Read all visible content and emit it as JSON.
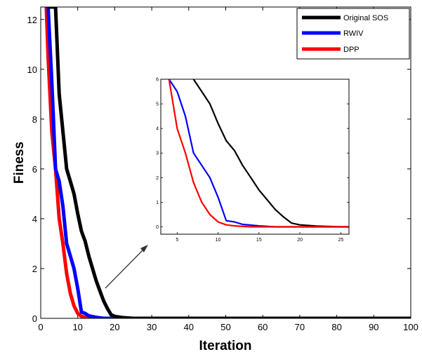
{
  "chart_data": {
    "type": "line",
    "title": "",
    "xlabel": "Iteration",
    "ylabel": "Finess",
    "xlim": [
      0,
      100
    ],
    "ylim": [
      0,
      12.5
    ],
    "xticks": [
      0,
      10,
      20,
      30,
      40,
      50,
      60,
      70,
      80,
      90,
      100
    ],
    "yticks": [
      0,
      2,
      4,
      6,
      8,
      10,
      12
    ],
    "grid": false,
    "legend": "top-right",
    "series": [
      {
        "name": "Original SOS",
        "color": "#000000",
        "x": [
          2,
          3,
          4,
          5,
          6,
          7,
          8,
          9,
          10,
          11,
          12,
          13,
          14,
          15,
          16,
          17,
          18,
          19,
          20,
          22,
          25,
          100
        ],
        "y": [
          12.5,
          12.5,
          12.5,
          9.0,
          7.5,
          6.0,
          5.5,
          5.0,
          4.2,
          3.5,
          3.1,
          2.5,
          2.0,
          1.5,
          1.1,
          0.7,
          0.4,
          0.15,
          0.08,
          0.03,
          0.0,
          0.0
        ]
      },
      {
        "name": "RWIV",
        "color": "#0000ff",
        "x": [
          2,
          3,
          4,
          5,
          6,
          7,
          8,
          9,
          10,
          11,
          12,
          13,
          15,
          17,
          60
        ],
        "y": [
          12.5,
          9.5,
          6.0,
          5.5,
          4.5,
          3.0,
          2.5,
          2.0,
          1.2,
          0.25,
          0.2,
          0.1,
          0.04,
          0.0,
          0.0
        ]
      },
      {
        "name": "DPP",
        "color": "#ff0000",
        "x": [
          1.5,
          2,
          3,
          4,
          5,
          6,
          7,
          8,
          9,
          10,
          11,
          12,
          14,
          16,
          57
        ],
        "y": [
          12.5,
          10.5,
          7.5,
          6.0,
          4.0,
          3.0,
          1.8,
          1.0,
          0.5,
          0.2,
          0.08,
          0.04,
          0.0,
          0.0,
          0.0
        ]
      }
    ],
    "inset": {
      "xlim": [
        3,
        26
      ],
      "ylim": [
        -0.3,
        6
      ],
      "xticks": [
        5,
        10,
        15,
        20,
        25
      ],
      "yticks": [
        0,
        1,
        2,
        3,
        4,
        5,
        6
      ]
    }
  }
}
